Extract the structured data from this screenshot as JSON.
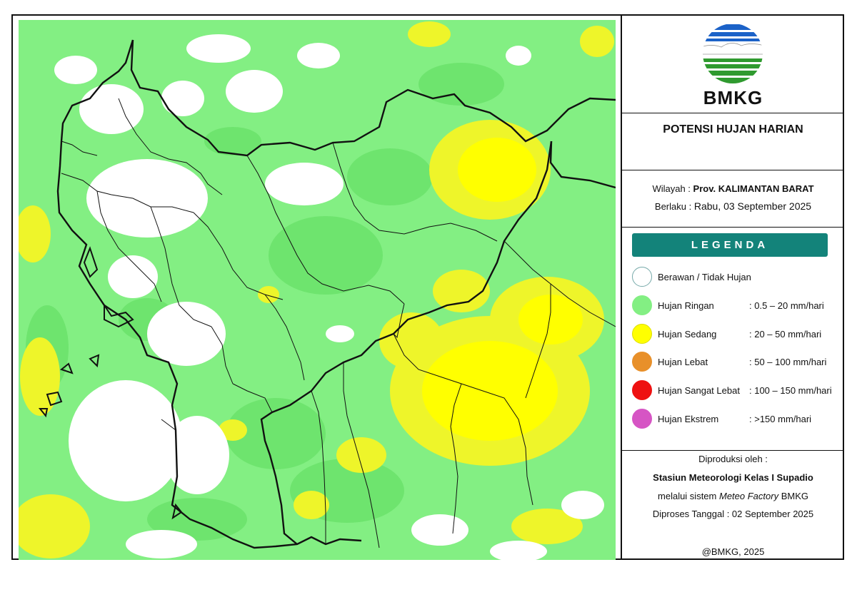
{
  "logo": {
    "text": "BMKG"
  },
  "header": {
    "title": "POTENSI HUJAN HARIAN"
  },
  "region": {
    "wilayah_label": "Wilayah :",
    "wilayah_value": "Prov. KALIMANTAN BARAT",
    "berlaku_label": "Berlaku :",
    "berlaku_value": "Rabu, 03 September 2025"
  },
  "legend": {
    "title": "LEGENDA",
    "items": [
      {
        "label": "Berawan / Tidak Hujan",
        "range": "",
        "color": "#ffffff"
      },
      {
        "label": "Hujan Ringan",
        "range": ": 0.5 – 20 mm/hari",
        "color": "#83ef83"
      },
      {
        "label": "Hujan Sedang",
        "range": ": 20 – 50 mm/hari",
        "color": "#ffff00"
      },
      {
        "label": "Hujan Lebat",
        "range": ": 50 – 100 mm/hari",
        "color": "#e8902a"
      },
      {
        "label": "Hujan Sangat Lebat",
        "range": ": 100 – 150 mm/hari",
        "color": "#ee1111"
      },
      {
        "label": "Hujan Ekstrem",
        "range": ": >150 mm/hari",
        "color": "#d655c4"
      }
    ]
  },
  "credit": {
    "line1": "Diproduksi oleh :",
    "line2": "Stasiun Meteorologi Kelas I Supadio",
    "line3_prefix": "melalui sistem ",
    "line3_system": "Meteo Factory",
    "line3_suffix": " BMKG",
    "line4": "Diproses Tanggal : 02 September 2025",
    "copyright": "@BMKG, 2025"
  },
  "colors": {
    "light_rain": "#83ef83",
    "light_rain_dark": "#6ee46e",
    "moderate_rain": "#ffff00",
    "moderate_rain_soft": "#e8f52a",
    "cloudy": "#ffffff",
    "border": "#111111",
    "legend_header": "#13837a"
  }
}
